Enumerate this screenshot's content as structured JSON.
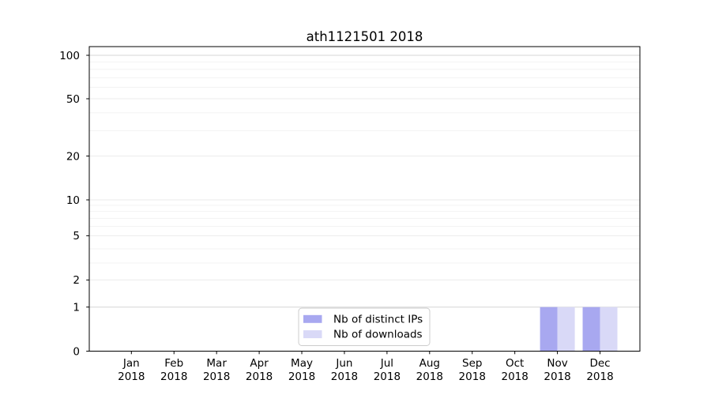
{
  "chart_data": {
    "type": "bar",
    "title": "ath1121501 2018",
    "categories": [
      "Jan",
      "Feb",
      "Mar",
      "Apr",
      "May",
      "Jun",
      "Jul",
      "Aug",
      "Sep",
      "Oct",
      "Nov",
      "Dec"
    ],
    "x_tick_second_line": "2018",
    "series": [
      {
        "name": "Nb of distinct IPs",
        "color": "#a8a8f0",
        "values": [
          0,
          0,
          0,
          0,
          0,
          0,
          0,
          0,
          0,
          0,
          1,
          1
        ]
      },
      {
        "name": "Nb of downloads",
        "color": "#d9d9f7",
        "values": [
          0,
          0,
          0,
          0,
          0,
          0,
          0,
          0,
          0,
          0,
          1,
          1
        ]
      }
    ],
    "xlabel": "",
    "ylabel": "",
    "yaxis": {
      "scale": "symlog",
      "ticks": [
        0,
        1,
        2,
        5,
        10,
        20,
        50,
        100
      ],
      "range": [
        0,
        115
      ]
    },
    "grid": "both-horizontal",
    "legend_position": "bottom-center",
    "colors": {
      "grid_strong": "#d6d6d6",
      "grid_major": "#ebebeb",
      "grid_minor": "#f3f3f3",
      "axis": "#000000",
      "legend_border": "#cccccc"
    }
  }
}
